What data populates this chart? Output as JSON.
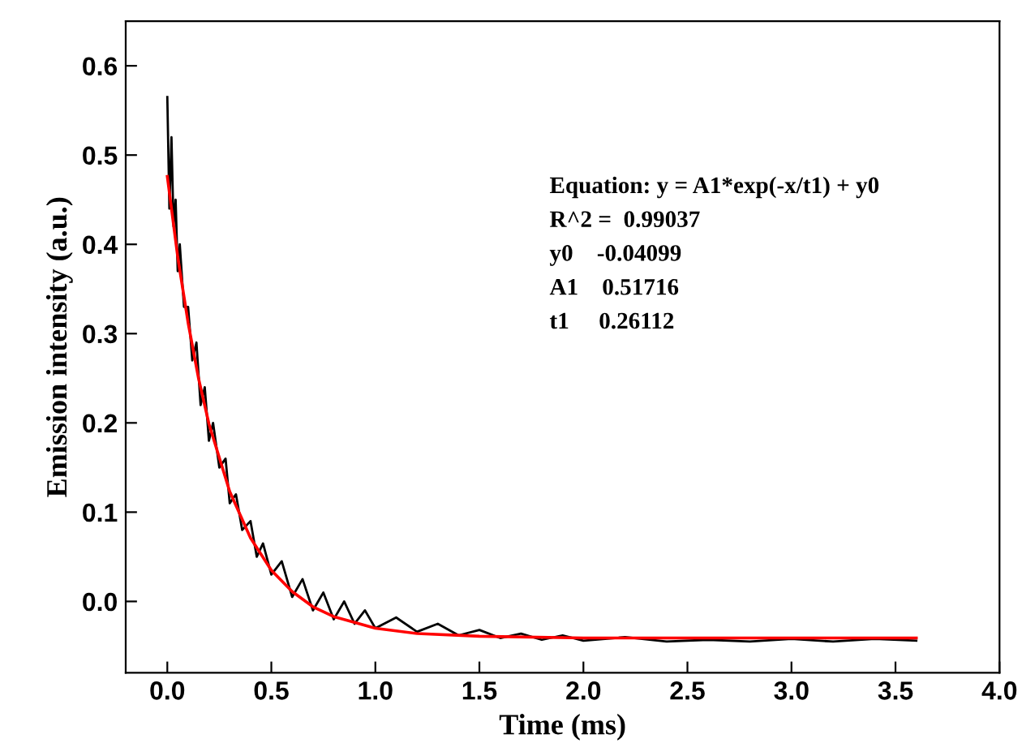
{
  "chart_data": {
    "type": "line",
    "xlabel": "Time (ms)",
    "ylabel": "Emission intensity (a.u.)",
    "xlim": [
      -0.2,
      4.0
    ],
    "ylim": [
      -0.08,
      0.65
    ],
    "xticks": [
      {
        "value": 0,
        "label": "0.0"
      },
      0.5,
      {
        "value": 1,
        "label": "1.0"
      },
      1.5,
      {
        "value": 2,
        "label": "2.0"
      },
      2.5,
      {
        "value": 3,
        "label": "3.0"
      },
      3.5,
      {
        "value": 4,
        "label": "4.0"
      }
    ],
    "yticks": [
      {
        "value": 0,
        "label": "0.0"
      },
      0.1,
      0.2,
      0.3,
      0.4,
      0.5,
      0.6
    ],
    "grid": false,
    "legend": false,
    "marker": "none",
    "line_style": "solid",
    "annotations": [
      "Equation: y = A1*exp(-x/t1) + y0",
      "R^2 =  0.99037",
      "y0    -0.04099",
      "A1    0.51716",
      "t1     0.26112"
    ],
    "series": [
      {
        "color": "#000000",
        "x": [
          0,
          0.01,
          0.02,
          0.03,
          0.04,
          0.05,
          0.06,
          0.08,
          0.1,
          0.12,
          0.14,
          0.16,
          0.18,
          0.2,
          0.22,
          0.25,
          0.28,
          0.3,
          0.33,
          0.36,
          0.4,
          0.43,
          0.46,
          0.5,
          0.55,
          0.6,
          0.65,
          0.7,
          0.75,
          0.8,
          0.85,
          0.9,
          0.95,
          1.0,
          1.1,
          1.2,
          1.3,
          1.4,
          1.5,
          1.6,
          1.7,
          1.8,
          1.9,
          2.0,
          2.2,
          2.4,
          2.6,
          2.8,
          3.0,
          3.2,
          3.4,
          3.6
        ],
        "values": [
          0.565,
          0.44,
          0.52,
          0.42,
          0.45,
          0.37,
          0.4,
          0.33,
          0.33,
          0.27,
          0.29,
          0.22,
          0.24,
          0.18,
          0.2,
          0.15,
          0.16,
          0.11,
          0.12,
          0.08,
          0.09,
          0.05,
          0.065,
          0.03,
          0.045,
          0.005,
          0.025,
          -0.01,
          0.01,
          -0.02,
          0.0,
          -0.025,
          -0.01,
          -0.03,
          -0.018,
          -0.034,
          -0.025,
          -0.038,
          -0.032,
          -0.041,
          -0.036,
          -0.043,
          -0.038,
          -0.044,
          -0.04,
          -0.045,
          -0.043,
          -0.045,
          -0.042,
          -0.045,
          -0.042,
          -0.044
        ]
      },
      {
        "color": "#ff0000",
        "x": [
          0,
          0.05,
          0.1,
          0.15,
          0.2,
          0.3,
          0.4,
          0.5,
          0.6,
          0.7,
          0.8,
          1.0,
          1.2,
          1.5,
          2.0,
          2.5,
          3.0,
          3.6
        ],
        "values": [
          0.476,
          0.386,
          0.312,
          0.25,
          0.199,
          0.123,
          0.071,
          0.035,
          0.011,
          -0.006,
          -0.017,
          -0.03,
          -0.036,
          -0.039,
          -0.041,
          -0.041,
          -0.041,
          -0.041
        ]
      }
    ]
  }
}
